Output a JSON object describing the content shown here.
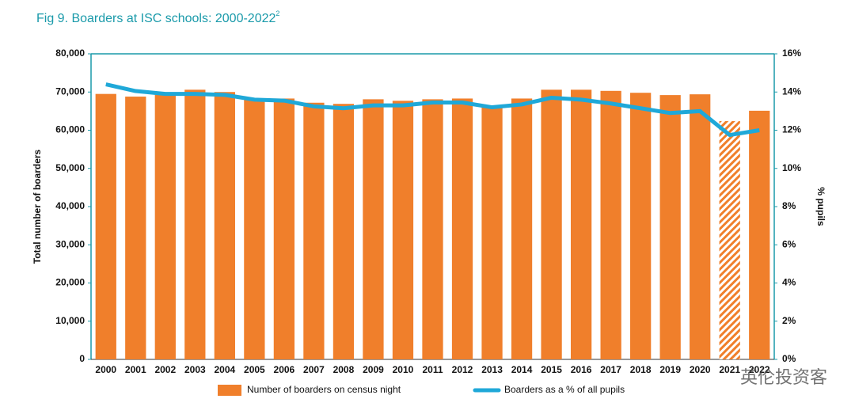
{
  "chart_data": {
    "type": "bar",
    "title": "Fig 9. Boarders at ISC schools: 2000-2022",
    "title_note": "2",
    "y_label": "Total number of boarders",
    "y2_label": "% pupils",
    "watermark": "英伦投资客",
    "categories": [
      "2000",
      "2001",
      "2002",
      "2003",
      "2004",
      "2005",
      "2006",
      "2007",
      "2008",
      "2009",
      "2010",
      "2011",
      "2012",
      "2013",
      "2014",
      "2015",
      "2016",
      "2017",
      "2018",
      "2019",
      "2020",
      "2021",
      "2022"
    ],
    "hatched": "2021",
    "series": [
      {
        "name": "Number of boarders on census night",
        "type": "bar",
        "color": "#f07f2b",
        "values": [
          69500,
          68800,
          69300,
          70600,
          70000,
          68000,
          68300,
          67200,
          66900,
          68100,
          67700,
          68100,
          68300,
          66000,
          68300,
          70600,
          70600,
          70300,
          69800,
          69200,
          69400,
          62400,
          65100
        ]
      },
      {
        "name": "Boarders as a % of all pupils",
        "type": "line",
        "axis": "y2",
        "color": "#1fa8d8",
        "values": [
          14.4,
          14.05,
          13.9,
          13.9,
          13.85,
          13.6,
          13.55,
          13.25,
          13.15,
          13.3,
          13.3,
          13.45,
          13.45,
          13.2,
          13.35,
          13.7,
          13.6,
          13.4,
          13.15,
          12.9,
          13.0,
          11.75,
          12.0
        ]
      }
    ],
    "ylim": [
      0,
      80000
    ],
    "yticks": [
      0,
      {
        "value": 10000,
        "label": "10,000"
      },
      {
        "value": 20000,
        "label": "20,000"
      },
      {
        "value": 30000,
        "label": "30,000"
      },
      {
        "value": 40000,
        "label": "40,000"
      },
      {
        "value": 50000,
        "label": "50,000"
      },
      {
        "value": 60000,
        "label": "60,000"
      },
      {
        "value": 70000,
        "label": "70,000"
      },
      {
        "value": 80000,
        "label": "80,000"
      }
    ],
    "y2lim": [
      0,
      16
    ],
    "y2ticks": [
      {
        "value": 0,
        "label": "0%"
      },
      {
        "value": 2,
        "label": "2%"
      },
      {
        "value": 4,
        "label": "4%"
      },
      {
        "value": 6,
        "label": "6%"
      },
      {
        "value": 8,
        "label": "8%"
      },
      {
        "value": 10,
        "label": "10%"
      },
      {
        "value": 12,
        "label": "12%"
      },
      {
        "value": 14,
        "label": "14%"
      },
      {
        "value": 16,
        "label": "16%"
      }
    ],
    "grid": false
  }
}
